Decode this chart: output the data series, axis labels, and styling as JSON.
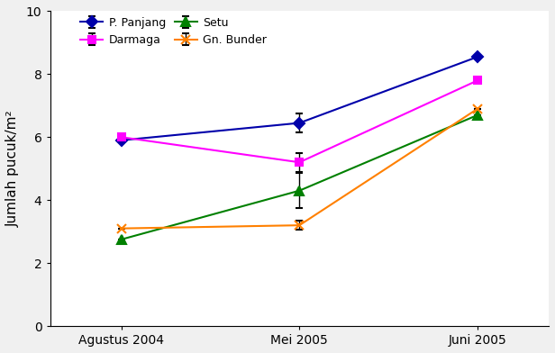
{
  "x_labels": [
    "Agustus 2004",
    "Mei 2005",
    "Juni 2005"
  ],
  "x_positions": [
    0,
    1,
    2
  ],
  "series": [
    {
      "label": "P. Panjang",
      "values": [
        5.9,
        6.45,
        8.55
      ],
      "color": "#0000AA",
      "marker": "D",
      "markersize": 6,
      "linestyle": "-"
    },
    {
      "label": "Darmaga",
      "values": [
        6.0,
        5.2,
        7.8
      ],
      "color": "#FF00FF",
      "marker": "s",
      "markersize": 6,
      "linestyle": "-"
    },
    {
      "label": "Setu",
      "values": [
        2.75,
        4.3,
        6.7
      ],
      "color": "#008000",
      "marker": "^",
      "markersize": 7,
      "linestyle": "-"
    },
    {
      "label": "Gn. Bunder",
      "values": [
        3.1,
        3.2,
        6.9
      ],
      "color": "#FF8000",
      "marker": "x",
      "markersize": 7,
      "linestyle": "-"
    }
  ],
  "error_bars": {
    "P. Panjang": [
      0.0,
      0.3,
      0.0
    ],
    "Darmaga": [
      0.0,
      0.3,
      0.0
    ],
    "Setu": [
      0.0,
      0.55,
      0.0
    ],
    "Gn. Bunder": [
      0.0,
      0.15,
      0.0
    ]
  },
  "ylabel": "Jumlah pucuk/m²",
  "ylim": [
    0,
    10
  ],
  "yticks": [
    0,
    2,
    4,
    6,
    8,
    10
  ],
  "figsize": [
    6.16,
    3.92
  ],
  "dpi": 100,
  "bg_color": "#F0F0F0",
  "plot_bg_color": "#FFFFFF"
}
